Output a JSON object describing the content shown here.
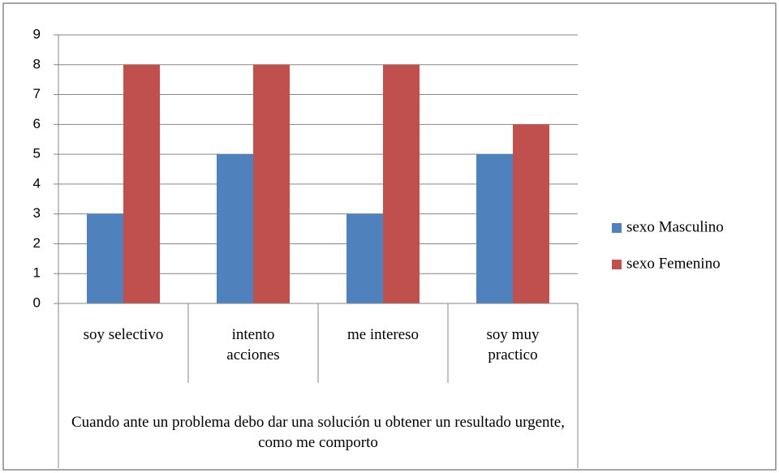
{
  "chart_data": {
    "type": "bar",
    "categories": [
      "soy selectivo",
      "intento acciones",
      "me intereso",
      "soy muy practico"
    ],
    "xlabel": "Cuando ante un problema debo dar una solución u obtener un resultado urgente, como me comporto",
    "series": [
      {
        "name": "sexo Masculino",
        "color": "#4f81bd",
        "values": [
          3,
          5,
          3,
          5
        ]
      },
      {
        "name": "sexo Femenino",
        "color": "#c0504d",
        "values": [
          8,
          8,
          8,
          6
        ]
      }
    ],
    "ylim": [
      0,
      9
    ],
    "yticks": [
      0,
      1,
      2,
      3,
      4,
      5,
      6,
      7,
      8,
      9
    ],
    "grid": true,
    "legend": "right"
  }
}
